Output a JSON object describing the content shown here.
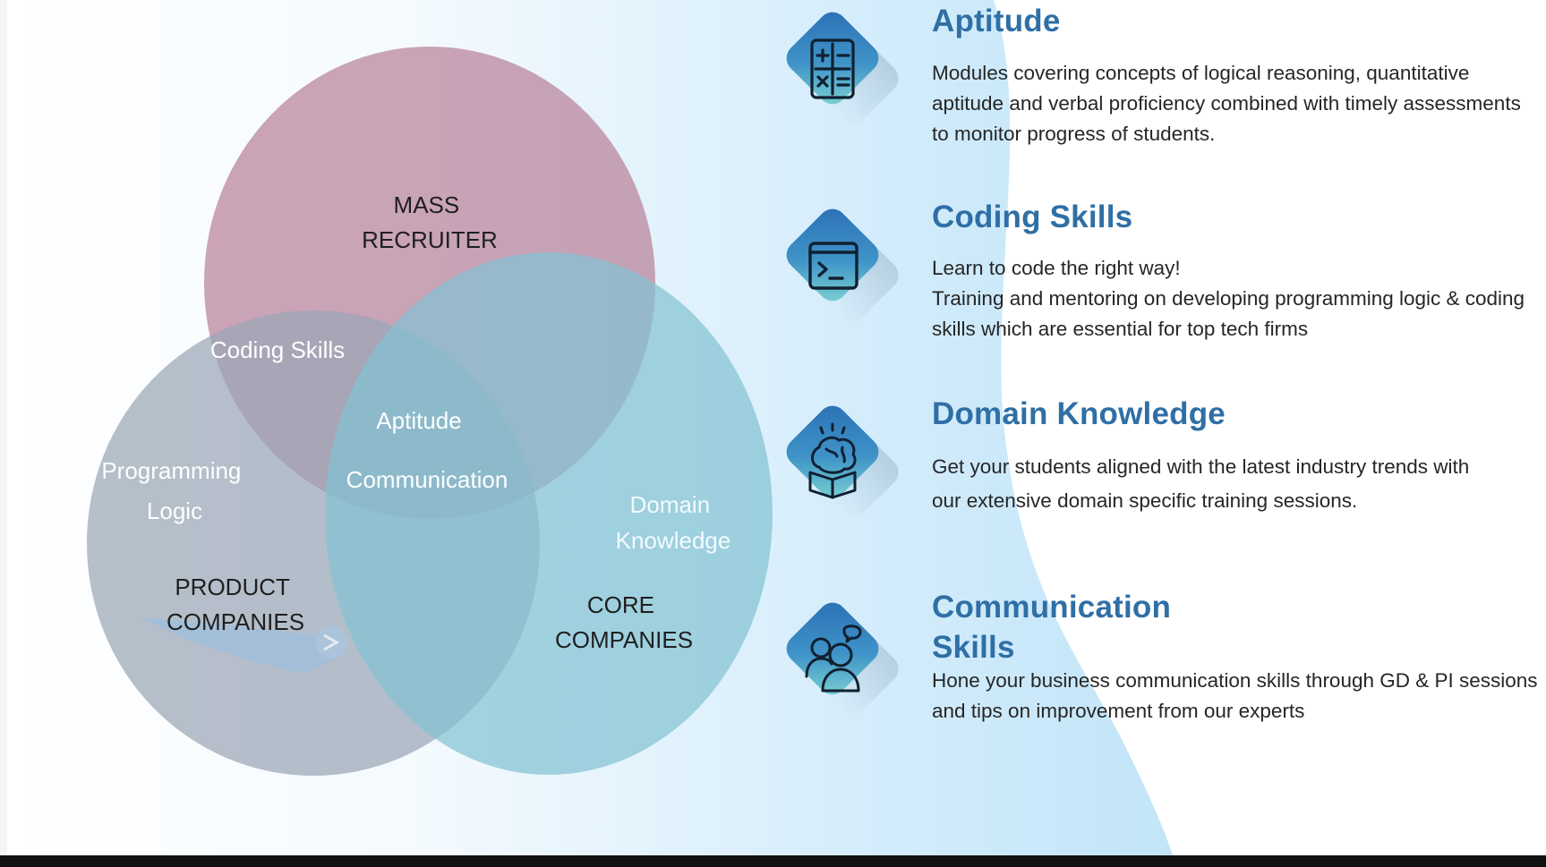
{
  "diagram": {
    "sets": [
      {
        "id": "mass",
        "label_lines": [
          "MASS",
          "RECRUITER"
        ],
        "color": "#b9819a"
      },
      {
        "id": "product",
        "label_lines": [
          "PRODUCT",
          "COMPANIES"
        ],
        "color": "#9aa6b6"
      },
      {
        "id": "core",
        "label_lines": [
          "CORE",
          "COMPANIES"
        ],
        "color": "#83c2d2"
      }
    ],
    "regions": {
      "coding_skills": "Coding Skills",
      "aptitude": "Aptitude",
      "communication": "Communication",
      "programming_logic": [
        "Programming",
        "Logic"
      ],
      "domain_knowledge": [
        "Domain",
        "Knowledge"
      ]
    }
  },
  "features": [
    {
      "icon": "calculator-icon",
      "title_lines": [
        "Aptitude"
      ],
      "desc_lines": [
        "Modules covering concepts of logical reasoning, quantitative",
        "aptitude and verbal proficiency combined with timely assessments",
        "to monitor progress of students."
      ]
    },
    {
      "icon": "terminal-icon",
      "title_lines": [
        "Coding Skills"
      ],
      "desc_lines": [
        "Learn to code the right way!",
        "Training and mentoring on developing programming logic & coding",
        "skills which are essential for top tech firms"
      ]
    },
    {
      "icon": "brain-book-icon",
      "title_lines": [
        "Domain Knowledge"
      ],
      "desc_lines": [
        "Get your students aligned with the latest industry trends with",
        "our extensive domain specific training sessions."
      ]
    },
    {
      "icon": "people-chat-icon",
      "title_lines": [
        "Communication",
        "Skills"
      ],
      "desc_lines": [
        "Hone your business communication skills through GD & PI sessions",
        "and tips on improvement from our experts"
      ]
    }
  ],
  "colors": {
    "accent_title": "#2f6fa6",
    "badge_dark": "#2d78b8",
    "badge_light": "#72cfd4",
    "body_text": "#262626"
  }
}
